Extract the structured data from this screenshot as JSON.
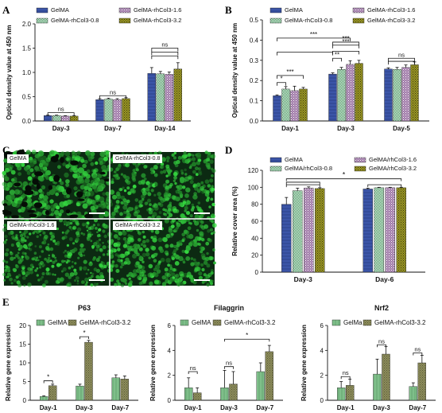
{
  "panel_letters": [
    "A",
    "B",
    "C",
    "D",
    "E"
  ],
  "colors": {
    "GelMA": "#3b55a8",
    "rhCol3_0_8": "#2e8a4a",
    "rhCol3_1_6": "#a07aa8",
    "rhCol3_3_2": "#9a9624",
    "e_gelma": "#7fbf8a",
    "e_rh": "#8c8c5c",
    "microscope_bg": "#0c2a12"
  },
  "micrographs": [
    {
      "label": "GelMA"
    },
    {
      "label": "GelMA-rhCol3-0.8"
    },
    {
      "label": "GelMA-rhCol3-1.6"
    },
    {
      "label": "GelMA-rhCol3-3.2"
    }
  ],
  "chart_data": [
    {
      "id": "A",
      "type": "bar",
      "ylabel": "Optical density value at 450 nm",
      "ylim": [
        0,
        2.0
      ],
      "yticks": [
        "0.0",
        "0.5",
        "1.0",
        "1.5",
        "2.0"
      ],
      "categories": [
        "Day-3",
        "Day-7",
        "Day-14"
      ],
      "series": [
        {
          "name": "GelMA",
          "values": [
            0.11,
            0.44,
            0.98
          ],
          "errors": [
            0.01,
            0.02,
            0.12
          ]
        },
        {
          "name": "GelMA-rhCol3-0.8",
          "values": [
            0.11,
            0.45,
            0.97
          ],
          "errors": [
            0.01,
            0.02,
            0.05
          ]
        },
        {
          "name": "GelMA-rhCol3-1.6",
          "values": [
            0.1,
            0.44,
            0.96
          ],
          "errors": [
            0.01,
            0.02,
            0.05
          ]
        },
        {
          "name": "GelMA-rhCol3-3.2",
          "values": [
            0.1,
            0.46,
            1.07
          ],
          "errors": [
            0.01,
            0.02,
            0.13
          ]
        }
      ],
      "annotations": [
        "ns",
        "ns",
        "ns"
      ],
      "legend": "top"
    },
    {
      "id": "B",
      "type": "bar",
      "ylabel": "Optical density value at 450 nm",
      "ylim": [
        0,
        0.5
      ],
      "yticks": [
        "0.0",
        "0.1",
        "0.2",
        "0.3",
        "0.4",
        "0.5"
      ],
      "categories": [
        "Day-1",
        "Day-3",
        "Day-5"
      ],
      "series": [
        {
          "name": "GelMA",
          "values": [
            0.125,
            0.232,
            0.257
          ],
          "errors": [
            0.004,
            0.006,
            0.006
          ]
        },
        {
          "name": "GelMA-rhCol3-0.8",
          "values": [
            0.158,
            0.255,
            0.255
          ],
          "errors": [
            0.012,
            0.01,
            0.01
          ]
        },
        {
          "name": "GelMA-rhCol3-1.6",
          "values": [
            0.15,
            0.28,
            0.265
          ],
          "errors": [
            0.022,
            0.018,
            0.012
          ]
        },
        {
          "name": "GelMA-rhCol3-3.2",
          "values": [
            0.158,
            0.285,
            0.278
          ],
          "errors": [
            0.008,
            0.015,
            0.014
          ]
        }
      ],
      "annotations": [
        "*",
        "***",
        "***",
        "**",
        "***",
        "***",
        "ns"
      ],
      "legend": "top"
    },
    {
      "id": "D",
      "type": "bar",
      "ylabel": "Relative cover area (%)",
      "ylim": [
        0,
        120
      ],
      "yticks": [
        "0",
        "20",
        "40",
        "60",
        "80",
        "100",
        "120"
      ],
      "categories": [
        "Day-3",
        "Day-6"
      ],
      "series": [
        {
          "name": "GelMA",
          "values": [
            80,
            98
          ],
          "errors": [
            8,
            1
          ]
        },
        {
          "name": "GelMA/rhCol3-0.8",
          "values": [
            96,
            99.5
          ],
          "errors": [
            3,
            0.5
          ]
        },
        {
          "name": "GelMA/rhCol3-1.6",
          "values": [
            99,
            99.5
          ],
          "errors": [
            1.5,
            0.5
          ]
        },
        {
          "name": "GelMA/rhCol3-3.2",
          "values": [
            98.5,
            99.5
          ],
          "errors": [
            1,
            0.5
          ]
        }
      ],
      "annotations": [
        "*"
      ],
      "legend": "top"
    },
    {
      "id": "E1",
      "type": "bar",
      "title": "P63",
      "ylabel": "Relative gene expression",
      "ylim": [
        0,
        20
      ],
      "yticks": [
        "0",
        "5",
        "10",
        "15",
        "20"
      ],
      "categories": [
        "Day-1",
        "Day-3",
        "Day-7"
      ],
      "series": [
        {
          "name": "GelMA",
          "values": [
            1.0,
            3.8,
            6.0
          ],
          "errors": [
            0.2,
            0.5,
            0.8
          ]
        },
        {
          "name": "GelMA-rhCol3-3.2",
          "values": [
            3.9,
            15.5,
            5.7
          ],
          "errors": [
            0.4,
            0.5,
            0.8
          ]
        }
      ],
      "annotations": [
        "*",
        "*"
      ],
      "legend": "top"
    },
    {
      "id": "E2",
      "type": "bar",
      "title": "Filaggrin",
      "ylabel": "Relative gene expression",
      "ylim": [
        0,
        6
      ],
      "yticks": [
        "0",
        "2",
        "4",
        "6"
      ],
      "categories": [
        "Day-1",
        "Day-3",
        "Day-7"
      ],
      "series": [
        {
          "name": "GelMA",
          "values": [
            1.0,
            1.0,
            2.3
          ],
          "errors": [
            0.8,
            1.4,
            0.7
          ]
        },
        {
          "name": "GelMA-rhCol3-3.2",
          "values": [
            0.6,
            1.3,
            3.9
          ],
          "errors": [
            0.4,
            1.0,
            0.5
          ]
        }
      ],
      "annotations": [
        "ns",
        "ns",
        "*"
      ],
      "legend": "top"
    },
    {
      "id": "E3",
      "type": "bar",
      "title": "Nrf2",
      "ylabel": "Relative gene expression",
      "ylim": [
        0,
        6
      ],
      "yticks": [
        "0",
        "2",
        "4",
        "6"
      ],
      "categories": [
        "Day-1",
        "Day-3",
        "Day-7"
      ],
      "series": [
        {
          "name": "GelMa",
          "values": [
            1.0,
            2.1,
            1.1
          ],
          "errors": [
            0.5,
            1.2,
            0.3
          ]
        },
        {
          "name": "GelMA-rhCol3-3.2",
          "values": [
            1.2,
            3.7,
            3.0
          ],
          "errors": [
            0.5,
            0.6,
            0.6
          ]
        }
      ],
      "annotations": [
        "ns",
        "ns",
        "ns"
      ],
      "legend": "top"
    }
  ]
}
